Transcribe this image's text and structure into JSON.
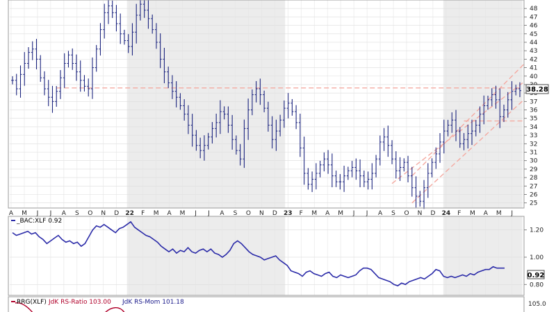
{
  "chart_data": [
    {
      "type": "ohlc",
      "title": "",
      "ylim": [
        24.4,
        49
      ],
      "yticks": [
        25,
        26,
        27,
        28,
        29,
        30,
        31,
        32,
        33,
        34,
        35,
        36,
        37,
        38,
        39,
        40,
        41,
        42,
        43,
        44,
        45,
        46,
        47,
        48
      ],
      "x_month_labels": [
        "A",
        "M",
        "J",
        "J",
        "A",
        "S",
        "O",
        "N",
        "D",
        "22",
        "F",
        "M",
        "A",
        "M",
        "J",
        "J",
        "A",
        "S",
        "O",
        "N",
        "D",
        "23",
        "F",
        "M",
        "A",
        "M",
        "J",
        "J",
        "A",
        "S",
        "O",
        "N",
        "D",
        "24",
        "F",
        "M",
        "A",
        "M",
        "J"
      ],
      "last_value_label": "38.28",
      "closes": [
        39.5,
        38.5,
        40.2,
        41.5,
        42.8,
        43.2,
        42,
        39.8,
        38.5,
        37.5,
        37,
        38.2,
        39.8,
        41.5,
        42.5,
        41.5,
        40.5,
        39.5,
        38.8,
        38.5,
        41,
        43.2,
        45.5,
        47.5,
        48.3,
        47.5,
        46.2,
        45,
        44.2,
        43.5,
        45.2,
        47.2,
        48.5,
        47.8,
        46.8,
        45.5,
        44,
        42,
        40.5,
        39.2,
        38.2,
        37.5,
        36.5,
        35.5,
        34.2,
        33,
        31.8,
        31.2,
        31.8,
        32.8,
        33.8,
        34.5,
        35.8,
        35.5,
        34.2,
        32.5,
        31.2,
        30.2,
        33.8,
        36,
        37.8,
        38.5,
        37.8,
        36.2,
        34.2,
        32.5,
        33.5,
        34.8,
        36.2,
        36.8,
        35.8,
        34.5,
        31.5,
        28.5,
        27.2,
        27.8,
        28.5,
        29.5,
        30.2,
        29.5,
        28.2,
        27.5,
        27.5,
        28.2,
        28.8,
        29.2,
        28.8,
        28.2,
        27.5,
        27.8,
        28.5,
        30.2,
        32.2,
        32.8,
        31.8,
        30.2,
        28.8,
        29.2,
        29.8,
        28.2,
        26.8,
        25.8,
        25.2,
        26.8,
        28.5,
        29.8,
        30.8,
        32.2,
        33.5,
        34.2,
        34.8,
        33.5,
        32,
        32.5,
        33.2,
        33.5,
        34.2,
        35.5,
        36.5,
        37.2,
        37.8,
        37.2,
        35.2,
        36,
        37.2,
        38.2,
        38.5,
        38.28
      ],
      "resistance_level": 38.6,
      "support_level": 34.7,
      "channel": {
        "start_index": 100,
        "end_index": 128,
        "lower_start": 25.0,
        "lower_end": 37.2,
        "upper_start": 28.2,
        "upper_end": 41.4
      },
      "mid_channel": {
        "start_index": 95,
        "end_index": 130,
        "start": 27.3,
        "end": 39.2
      }
    },
    {
      "type": "line",
      "series": [
        {
          "name": "_BAC:XLF 0.92",
          "color": "#2a2aa8"
        }
      ],
      "ylim": [
        0.72,
        1.3
      ],
      "yticks": [
        0.8,
        1.0,
        1.2
      ],
      "ytick_labels": [
        "0.80",
        "1.00",
        "1.20"
      ],
      "last_value_label": "0.92",
      "values": [
        1.18,
        1.16,
        1.17,
        1.18,
        1.19,
        1.17,
        1.18,
        1.15,
        1.13,
        1.1,
        1.12,
        1.14,
        1.16,
        1.13,
        1.11,
        1.12,
        1.1,
        1.11,
        1.08,
        1.1,
        1.15,
        1.2,
        1.23,
        1.22,
        1.24,
        1.22,
        1.2,
        1.18,
        1.21,
        1.22,
        1.24,
        1.26,
        1.22,
        1.2,
        1.18,
        1.16,
        1.15,
        1.13,
        1.11,
        1.08,
        1.06,
        1.04,
        1.06,
        1.03,
        1.05,
        1.04,
        1.07,
        1.04,
        1.03,
        1.05,
        1.06,
        1.04,
        1.06,
        1.03,
        1.02,
        1.0,
        1.02,
        1.05,
        1.1,
        1.12,
        1.1,
        1.07,
        1.04,
        1.02,
        1.01,
        1.0,
        0.98,
        0.99,
        1.0,
        1.01,
        0.98,
        0.96,
        0.94,
        0.9,
        0.89,
        0.88,
        0.86,
        0.89,
        0.9,
        0.88,
        0.87,
        0.86,
        0.88,
        0.89,
        0.86,
        0.85,
        0.87,
        0.86,
        0.85,
        0.86,
        0.87,
        0.9,
        0.92,
        0.92,
        0.91,
        0.88,
        0.85,
        0.84,
        0.83,
        0.82,
        0.8,
        0.79,
        0.81,
        0.8,
        0.82,
        0.83,
        0.84,
        0.85,
        0.84,
        0.86,
        0.88,
        0.91,
        0.9,
        0.86,
        0.85,
        0.86,
        0.85,
        0.86,
        0.87,
        0.86,
        0.88,
        0.87,
        0.89,
        0.9,
        0.91,
        0.91,
        0.93,
        0.92,
        0.92,
        0.92
      ]
    },
    {
      "type": "line",
      "legend_prefix": "RRG(XLF)",
      "legend_ratio": "JdK RS-Ratio 103.00",
      "legend_mom": "JdK RS-Mom 101.18",
      "ytick_label": "105.0",
      "ratio_color": "#b0002a",
      "mom_color": "#1a1a8a"
    }
  ],
  "panel1_legend": "_BAC:XLF 0.92",
  "colors": {
    "price": "#1a237e",
    "ratio": "#2a2aa8",
    "shade": "#ececec",
    "dash": "#f4a9a0",
    "frame": "#9a9a9a"
  }
}
